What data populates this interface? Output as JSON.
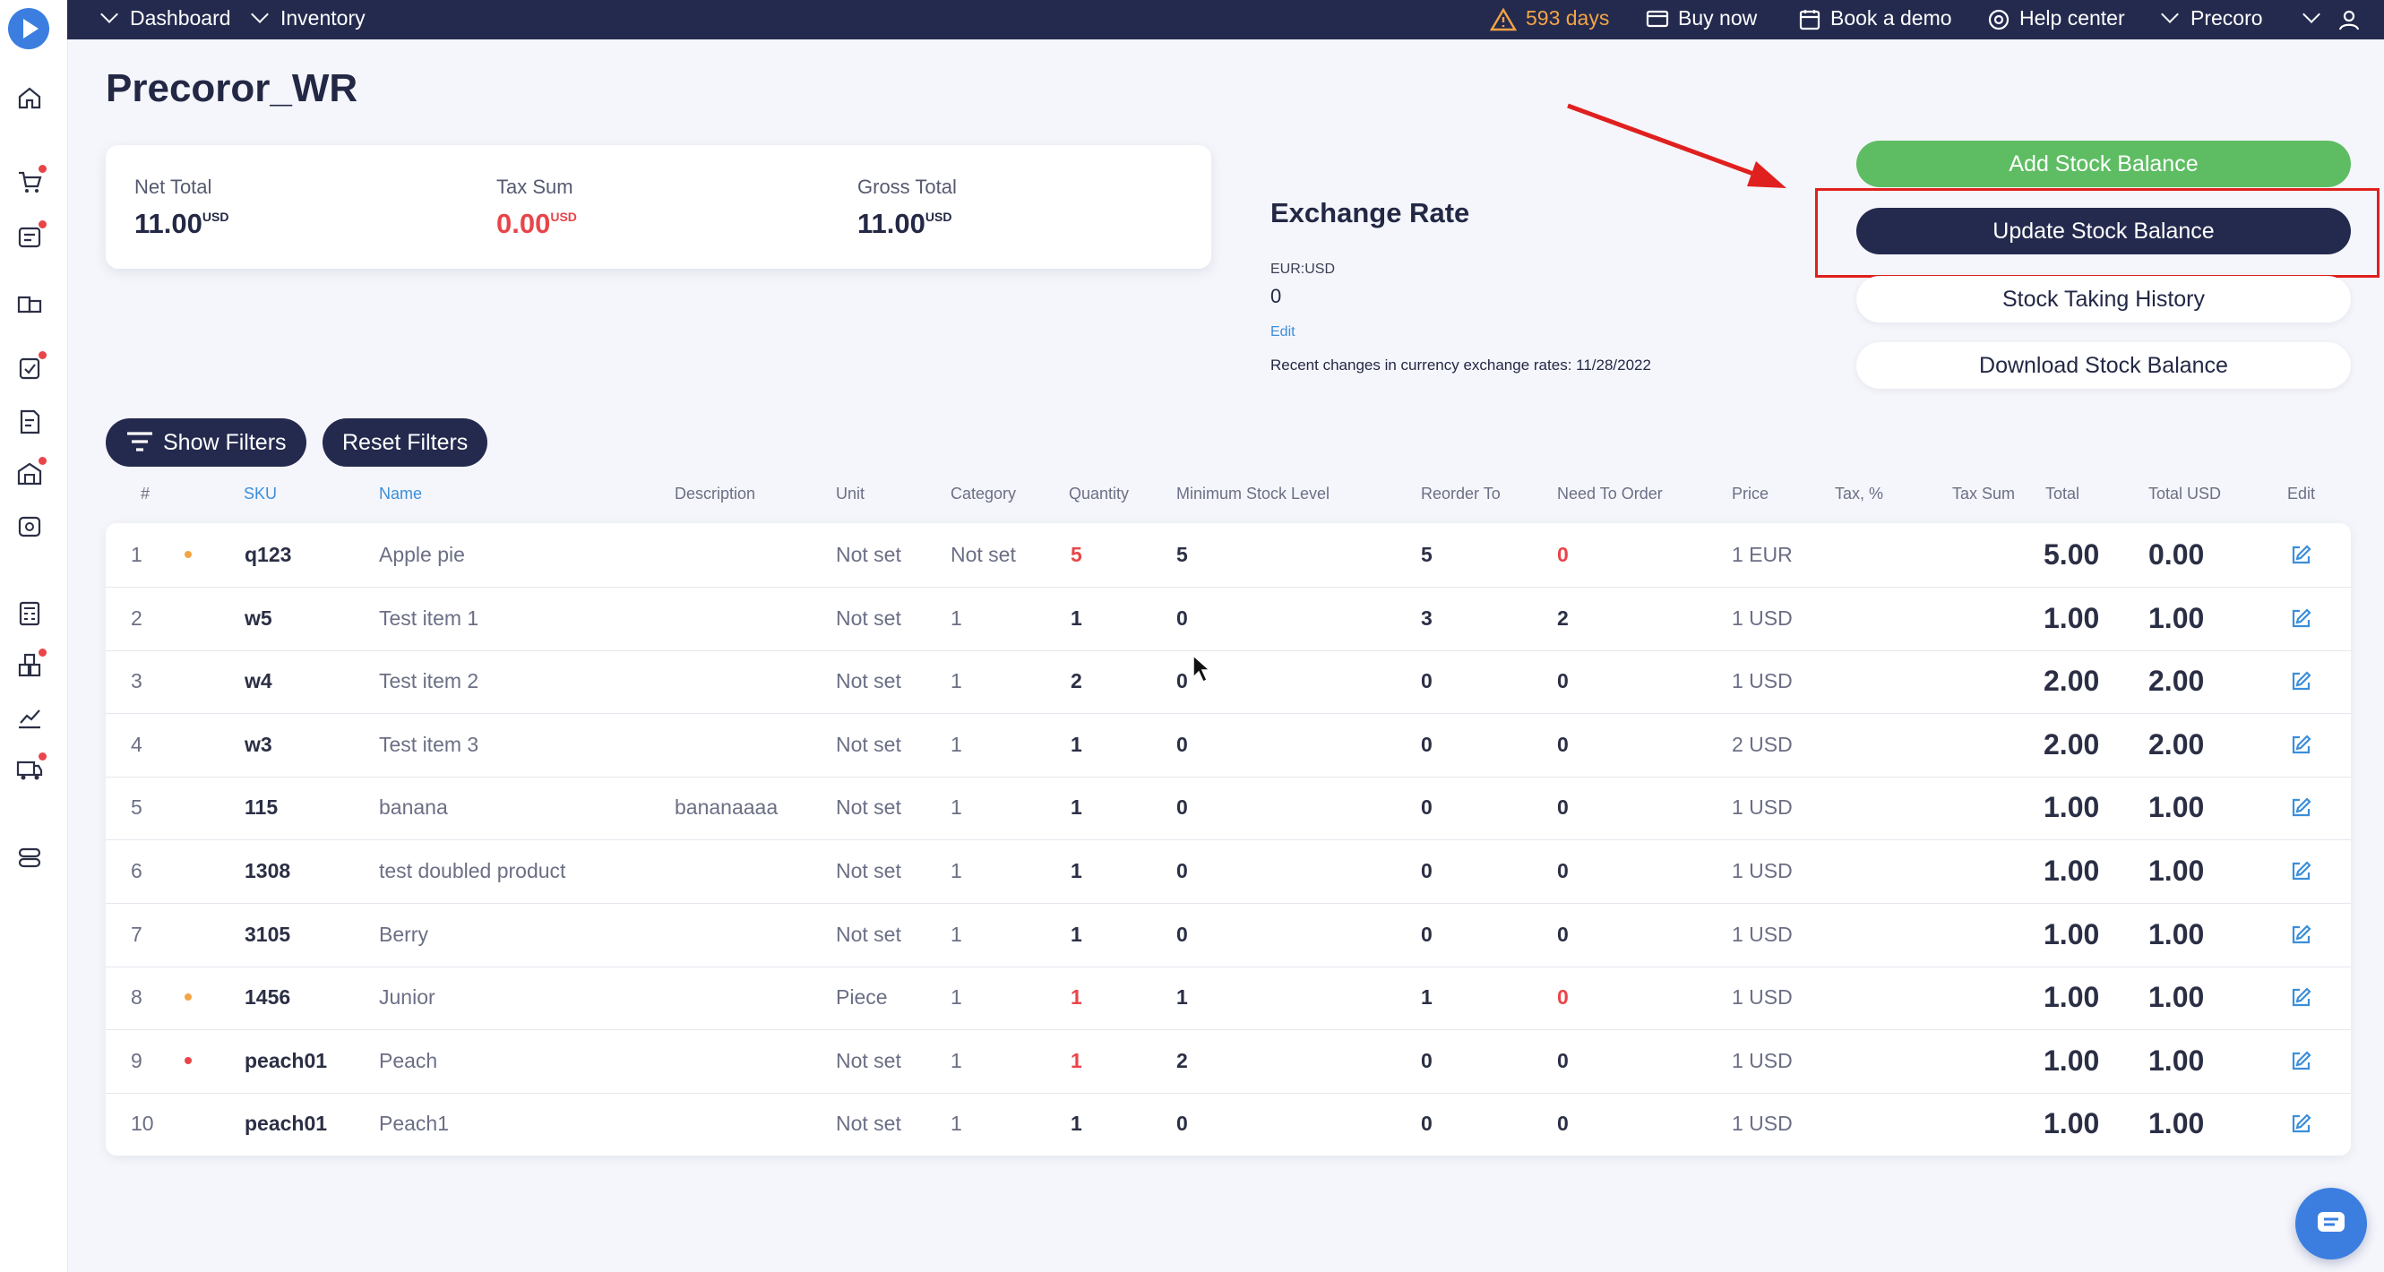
{
  "topbar": {
    "breadcrumb": [
      "Dashboard",
      "Inventory"
    ],
    "days_left": "593 days",
    "buy_now": "Buy now",
    "book_demo": "Book a demo",
    "help_center": "Help center",
    "company": "Precoro"
  },
  "page": {
    "title": "Precoror_WR"
  },
  "summary": {
    "net_total_label": "Net Total",
    "net_total_value": "11.00",
    "net_total_currency": "USD",
    "tax_sum_label": "Tax Sum",
    "tax_sum_value": "0.00",
    "tax_sum_currency": "USD",
    "gross_total_label": "Gross Total",
    "gross_total_value": "11.00",
    "gross_total_currency": "USD"
  },
  "exchange": {
    "title": "Exchange Rate",
    "pair": "EUR:USD",
    "value": "0",
    "edit": "Edit",
    "note": "Recent changes in currency exchange rates: 11/28/2022"
  },
  "actions": {
    "add": "Add Stock Balance",
    "update": "Update Stock Balance",
    "history": "Stock Taking History",
    "download": "Download Stock Balance"
  },
  "filters": {
    "show": "Show Filters",
    "reset": "Reset Filters"
  },
  "table": {
    "headers": {
      "num": "#",
      "sku": "SKU",
      "name": "Name",
      "description": "Description",
      "unit": "Unit",
      "category": "Category",
      "quantity": "Quantity",
      "min_stock": "Minimum Stock Level",
      "reorder": "Reorder To",
      "need": "Need To Order",
      "price": "Price",
      "tax": "Tax, %",
      "tax_sum": "Tax Sum",
      "total": "Total",
      "total_usd": "Total USD",
      "edit": "Edit"
    },
    "rows": [
      {
        "num": "1",
        "dot": "orange",
        "sku": "q123",
        "name": "Apple pie",
        "description": "",
        "unit": "Not set",
        "category": "Not set",
        "quantity": "5",
        "qty_alert": true,
        "min": "5",
        "reorder": "5",
        "need": "0",
        "need_alert": true,
        "price": "1 EUR",
        "total": "5.00",
        "total_usd": "0.00"
      },
      {
        "num": "2",
        "dot": "",
        "sku": "w5",
        "name": "Test item 1",
        "description": "",
        "unit": "Not set",
        "category": "1",
        "quantity": "1",
        "qty_alert": false,
        "min": "0",
        "reorder": "3",
        "need": "2",
        "need_alert": false,
        "price": "1 USD",
        "total": "1.00",
        "total_usd": "1.00"
      },
      {
        "num": "3",
        "dot": "",
        "sku": "w4",
        "name": "Test item 2",
        "description": "",
        "unit": "Not set",
        "category": "1",
        "quantity": "2",
        "qty_alert": false,
        "min": "0",
        "reorder": "0",
        "need": "0",
        "need_alert": false,
        "price": "1 USD",
        "total": "2.00",
        "total_usd": "2.00"
      },
      {
        "num": "4",
        "dot": "",
        "sku": "w3",
        "name": "Test item 3",
        "description": "",
        "unit": "Not set",
        "category": "1",
        "quantity": "1",
        "qty_alert": false,
        "min": "0",
        "reorder": "0",
        "need": "0",
        "need_alert": false,
        "price": "2 USD",
        "total": "2.00",
        "total_usd": "2.00"
      },
      {
        "num": "5",
        "dot": "",
        "sku": "115",
        "name": "banana",
        "description": "bananaaaa",
        "unit": "Not set",
        "category": "1",
        "quantity": "1",
        "qty_alert": false,
        "min": "0",
        "reorder": "0",
        "need": "0",
        "need_alert": false,
        "price": "1 USD",
        "total": "1.00",
        "total_usd": "1.00"
      },
      {
        "num": "6",
        "dot": "",
        "sku": "1308",
        "name": "test doubled product",
        "description": "",
        "unit": "Not set",
        "category": "1",
        "quantity": "1",
        "qty_alert": false,
        "min": "0",
        "reorder": "0",
        "need": "0",
        "need_alert": false,
        "price": "1 USD",
        "total": "1.00",
        "total_usd": "1.00"
      },
      {
        "num": "7",
        "dot": "",
        "sku": "3105",
        "name": "Berry",
        "description": "",
        "unit": "Not set",
        "category": "1",
        "quantity": "1",
        "qty_alert": false,
        "min": "0",
        "reorder": "0",
        "need": "0",
        "need_alert": false,
        "price": "1 USD",
        "total": "1.00",
        "total_usd": "1.00"
      },
      {
        "num": "8",
        "dot": "orange",
        "sku": "1456",
        "name": "Junior",
        "description": "",
        "unit": "Piece",
        "category": "1",
        "quantity": "1",
        "qty_alert": true,
        "min": "1",
        "reorder": "1",
        "need": "0",
        "need_alert": true,
        "price": "1 USD",
        "total": "1.00",
        "total_usd": "1.00"
      },
      {
        "num": "9",
        "dot": "red",
        "sku": "peach01",
        "name": "Peach",
        "description": "",
        "unit": "Not set",
        "category": "1",
        "quantity": "1",
        "qty_alert": true,
        "min": "2",
        "reorder": "0",
        "need": "0",
        "need_alert": false,
        "price": "1 USD",
        "total": "1.00",
        "total_usd": "1.00"
      },
      {
        "num": "10",
        "dot": "",
        "sku": "peach01",
        "name": "Peach1",
        "description": "",
        "unit": "Not set",
        "category": "1",
        "quantity": "1",
        "qty_alert": false,
        "min": "0",
        "reorder": "0",
        "need": "0",
        "need_alert": false,
        "price": "1 USD",
        "total": "1.00",
        "total_usd": "1.00"
      }
    ]
  },
  "colors": {
    "navy": "#242a4e",
    "green": "#5ebd63",
    "alert_red": "#e8454a",
    "warning_orange": "#f3a445",
    "link_blue": "#3b8ed9"
  }
}
